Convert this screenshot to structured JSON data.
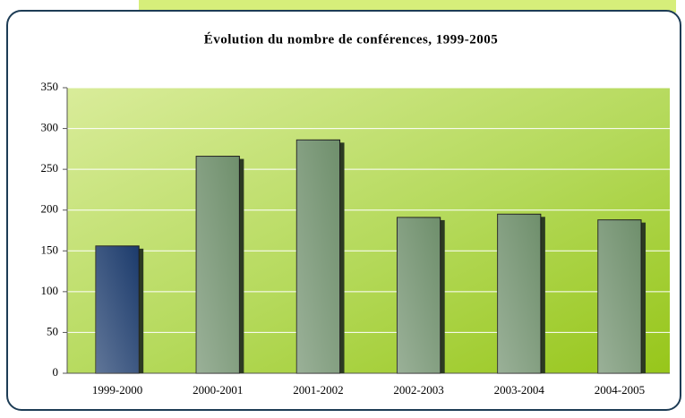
{
  "chart_data": {
    "type": "bar",
    "title": "Évolution du nombre de conférences, 1999-2005",
    "categories": [
      "1999-2000",
      "2000-2001",
      "2001-2002",
      "2002-2003",
      "2003-2004",
      "2004-2005"
    ],
    "values": [
      156,
      266,
      286,
      191,
      195,
      188
    ],
    "colors": [
      "#1c3b6c",
      "#6f8f6c",
      "#6f8f6c",
      "#6f8f6c",
      "#6f8f6c",
      "#6f8f6c"
    ],
    "ylim": [
      0,
      350
    ],
    "yticks": [
      0,
      50,
      100,
      150,
      200,
      250,
      300,
      350
    ],
    "grid": true
  }
}
